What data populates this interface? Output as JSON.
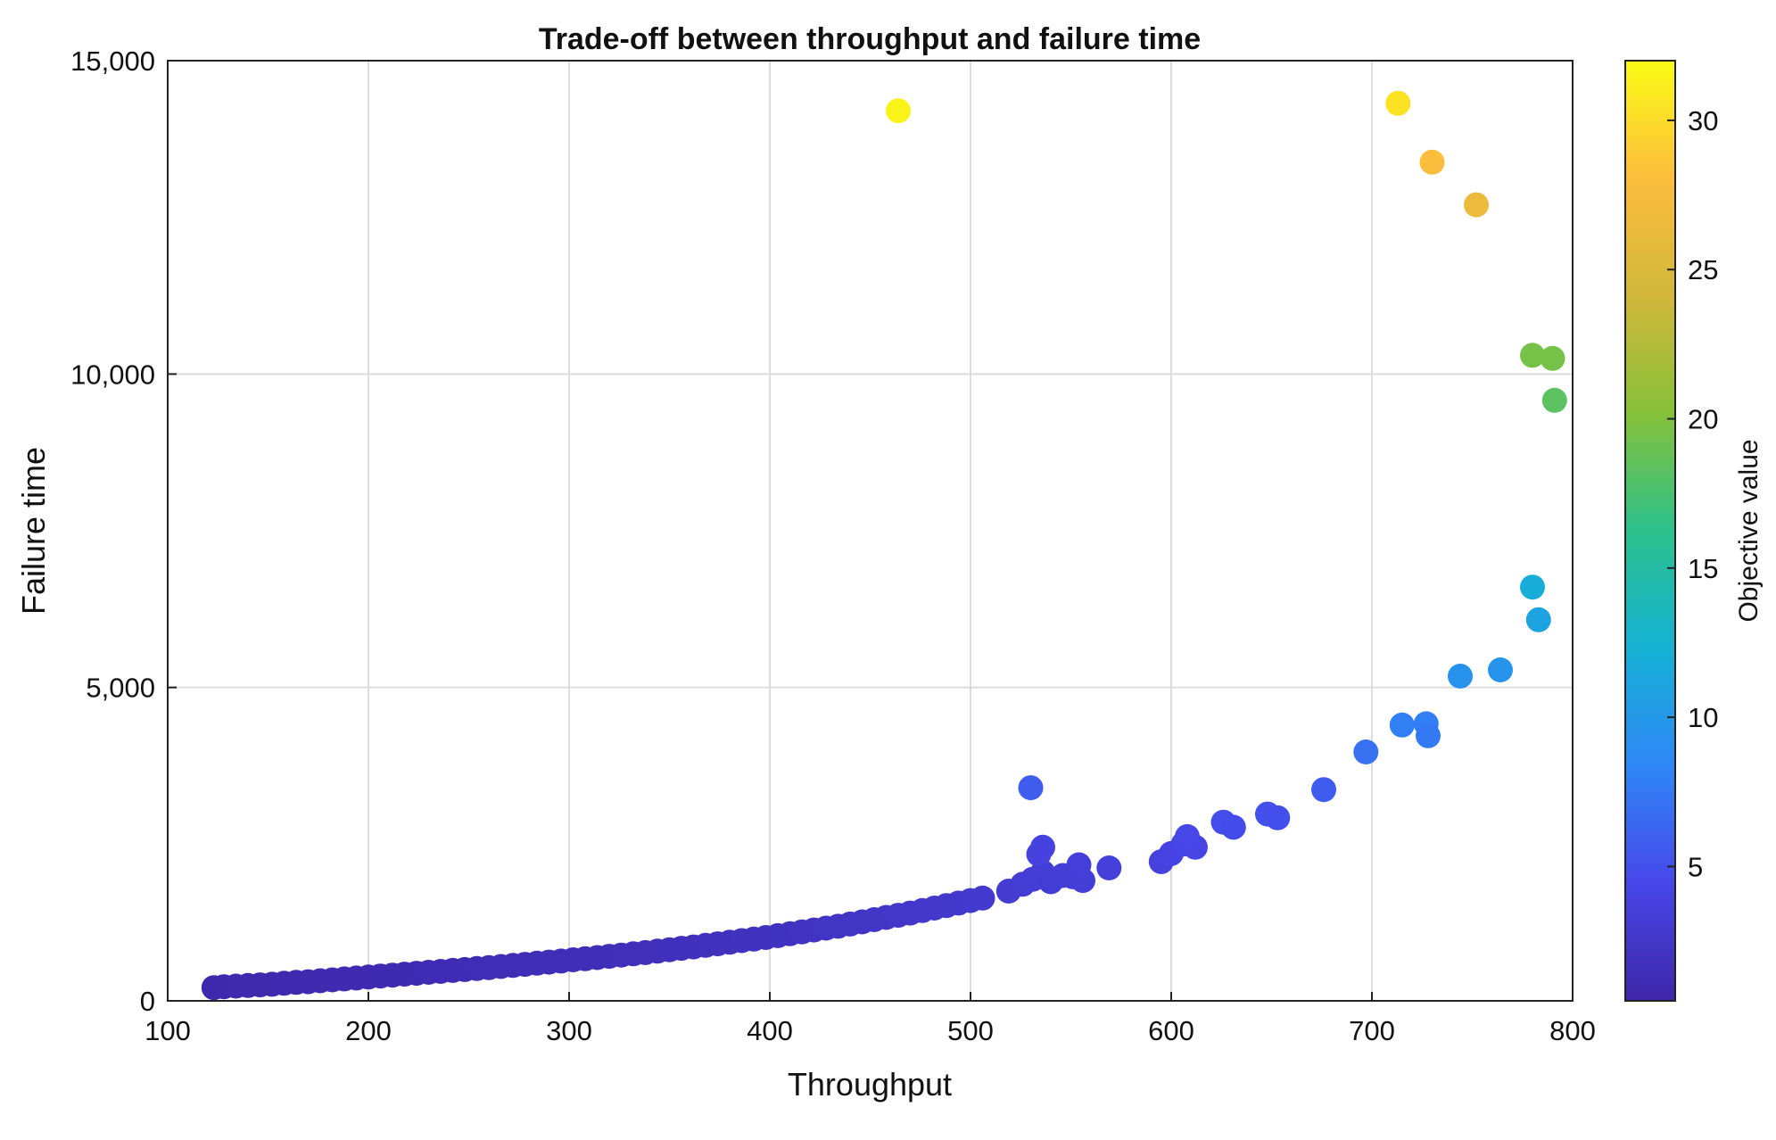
{
  "chart_data": {
    "type": "scatter",
    "title": "Trade-off between throughput and failure time",
    "xlabel": "Throughput",
    "ylabel": "Failure time",
    "xlim": [
      100,
      800
    ],
    "ylim": [
      0,
      15000
    ],
    "x_ticks": [
      100,
      200,
      300,
      400,
      500,
      600,
      700,
      800
    ],
    "y_ticks": [
      0,
      5000,
      10000,
      15000
    ],
    "y_tick_labels": [
      "0",
      "5,000",
      "10,000",
      "15,000"
    ],
    "grid": true,
    "colorbar": {
      "label": "Objective value",
      "range": [
        0.5,
        32
      ],
      "ticks": [
        5,
        10,
        15,
        20,
        25,
        30
      ],
      "colormap": "parula"
    },
    "points": [
      {
        "x": 123,
        "y": 210,
        "c": 0.7
      },
      {
        "x": 128,
        "y": 225,
        "c": 0.7
      },
      {
        "x": 134,
        "y": 235,
        "c": 0.8
      },
      {
        "x": 140,
        "y": 245,
        "c": 0.8
      },
      {
        "x": 146,
        "y": 255,
        "c": 0.8
      },
      {
        "x": 152,
        "y": 265,
        "c": 0.8
      },
      {
        "x": 158,
        "y": 280,
        "c": 0.9
      },
      {
        "x": 164,
        "y": 295,
        "c": 0.9
      },
      {
        "x": 170,
        "y": 305,
        "c": 0.9
      },
      {
        "x": 176,
        "y": 320,
        "c": 0.9
      },
      {
        "x": 182,
        "y": 335,
        "c": 1.0
      },
      {
        "x": 188,
        "y": 350,
        "c": 1.0
      },
      {
        "x": 194,
        "y": 365,
        "c": 1.0
      },
      {
        "x": 200,
        "y": 380,
        "c": 1.0
      },
      {
        "x": 206,
        "y": 395,
        "c": 1.1
      },
      {
        "x": 212,
        "y": 410,
        "c": 1.1
      },
      {
        "x": 218,
        "y": 425,
        "c": 1.1
      },
      {
        "x": 224,
        "y": 440,
        "c": 1.1
      },
      {
        "x": 230,
        "y": 455,
        "c": 1.2
      },
      {
        "x": 236,
        "y": 470,
        "c": 1.2
      },
      {
        "x": 242,
        "y": 485,
        "c": 1.2
      },
      {
        "x": 248,
        "y": 500,
        "c": 1.2
      },
      {
        "x": 254,
        "y": 515,
        "c": 1.3
      },
      {
        "x": 260,
        "y": 530,
        "c": 1.3
      },
      {
        "x": 266,
        "y": 548,
        "c": 1.3
      },
      {
        "x": 272,
        "y": 565,
        "c": 1.3
      },
      {
        "x": 278,
        "y": 582,
        "c": 1.4
      },
      {
        "x": 284,
        "y": 600,
        "c": 1.4
      },
      {
        "x": 290,
        "y": 618,
        "c": 1.4
      },
      {
        "x": 296,
        "y": 635,
        "c": 1.4
      },
      {
        "x": 302,
        "y": 655,
        "c": 1.5
      },
      {
        "x": 308,
        "y": 672,
        "c": 1.5
      },
      {
        "x": 314,
        "y": 690,
        "c": 1.5
      },
      {
        "x": 320,
        "y": 710,
        "c": 1.5
      },
      {
        "x": 326,
        "y": 730,
        "c": 1.6
      },
      {
        "x": 332,
        "y": 750,
        "c": 1.6
      },
      {
        "x": 338,
        "y": 770,
        "c": 1.6
      },
      {
        "x": 344,
        "y": 792,
        "c": 1.6
      },
      {
        "x": 350,
        "y": 815,
        "c": 1.7
      },
      {
        "x": 356,
        "y": 838,
        "c": 1.7
      },
      {
        "x": 362,
        "y": 860,
        "c": 1.7
      },
      {
        "x": 368,
        "y": 885,
        "c": 1.8
      },
      {
        "x": 374,
        "y": 910,
        "c": 1.8
      },
      {
        "x": 380,
        "y": 935,
        "c": 1.8
      },
      {
        "x": 386,
        "y": 960,
        "c": 1.9
      },
      {
        "x": 392,
        "y": 985,
        "c": 1.9
      },
      {
        "x": 398,
        "y": 1010,
        "c": 1.9
      },
      {
        "x": 404,
        "y": 1040,
        "c": 2.0
      },
      {
        "x": 410,
        "y": 1070,
        "c": 2.0
      },
      {
        "x": 416,
        "y": 1100,
        "c": 2.1
      },
      {
        "x": 422,
        "y": 1130,
        "c": 2.1
      },
      {
        "x": 428,
        "y": 1160,
        "c": 2.2
      },
      {
        "x": 434,
        "y": 1190,
        "c": 2.2
      },
      {
        "x": 440,
        "y": 1225,
        "c": 2.3
      },
      {
        "x": 446,
        "y": 1260,
        "c": 2.3
      },
      {
        "x": 452,
        "y": 1295,
        "c": 2.4
      },
      {
        "x": 458,
        "y": 1330,
        "c": 2.4
      },
      {
        "x": 464,
        "y": 1365,
        "c": 2.5
      },
      {
        "x": 470,
        "y": 1400,
        "c": 2.5
      },
      {
        "x": 476,
        "y": 1440,
        "c": 2.6
      },
      {
        "x": 482,
        "y": 1480,
        "c": 2.6
      },
      {
        "x": 488,
        "y": 1520,
        "c": 2.7
      },
      {
        "x": 494,
        "y": 1560,
        "c": 2.7
      },
      {
        "x": 500,
        "y": 1600,
        "c": 2.8
      },
      {
        "x": 506,
        "y": 1640,
        "c": 2.8
      },
      {
        "x": 519,
        "y": 1750,
        "c": 3.0
      },
      {
        "x": 526,
        "y": 1860,
        "c": 3.1
      },
      {
        "x": 531,
        "y": 1940,
        "c": 3.2
      },
      {
        "x": 536,
        "y": 2050,
        "c": 3.3
      },
      {
        "x": 540,
        "y": 1900,
        "c": 3.2
      },
      {
        "x": 546,
        "y": 2000,
        "c": 3.3
      },
      {
        "x": 551,
        "y": 1980,
        "c": 3.3
      },
      {
        "x": 556,
        "y": 1920,
        "c": 3.3
      },
      {
        "x": 554,
        "y": 2170,
        "c": 3.5
      },
      {
        "x": 534,
        "y": 2340,
        "c": 3.8
      },
      {
        "x": 536,
        "y": 2450,
        "c": 3.9
      },
      {
        "x": 569,
        "y": 2120,
        "c": 3.6
      },
      {
        "x": 530,
        "y": 3400,
        "c": 5.8
      },
      {
        "x": 595,
        "y": 2220,
        "c": 3.8
      },
      {
        "x": 600,
        "y": 2350,
        "c": 4.0
      },
      {
        "x": 606,
        "y": 2500,
        "c": 4.2
      },
      {
        "x": 612,
        "y": 2450,
        "c": 4.1
      },
      {
        "x": 608,
        "y": 2620,
        "c": 4.3
      },
      {
        "x": 626,
        "y": 2850,
        "c": 4.8
      },
      {
        "x": 631,
        "y": 2770,
        "c": 4.7
      },
      {
        "x": 648,
        "y": 2980,
        "c": 5.0
      },
      {
        "x": 653,
        "y": 2920,
        "c": 4.9
      },
      {
        "x": 676,
        "y": 3370,
        "c": 5.8
      },
      {
        "x": 697,
        "y": 3970,
        "c": 7.0
      },
      {
        "x": 715,
        "y": 4400,
        "c": 7.8
      },
      {
        "x": 727,
        "y": 4420,
        "c": 7.8
      },
      {
        "x": 728,
        "y": 4230,
        "c": 7.5
      },
      {
        "x": 744,
        "y": 5180,
        "c": 9.4
      },
      {
        "x": 764,
        "y": 5280,
        "c": 9.6
      },
      {
        "x": 780,
        "y": 6600,
        "c": 11.8
      },
      {
        "x": 783,
        "y": 6080,
        "c": 11.0
      },
      {
        "x": 780,
        "y": 10300,
        "c": 19.5
      },
      {
        "x": 790,
        "y": 10250,
        "c": 19.5
      },
      {
        "x": 791,
        "y": 9580,
        "c": 18.3
      },
      {
        "x": 752,
        "y": 12700,
        "c": 26.5
      },
      {
        "x": 730,
        "y": 13380,
        "c": 27.8
      },
      {
        "x": 713,
        "y": 14320,
        "c": 30.5
      },
      {
        "x": 464,
        "y": 14200,
        "c": 31.5
      }
    ]
  }
}
